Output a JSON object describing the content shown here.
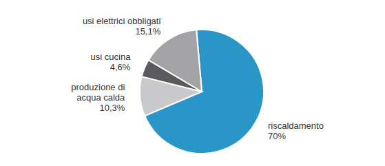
{
  "chart_data": {
    "type": "pie",
    "categories": [
      "riscaldamento",
      "produzione di acqua calda",
      "usi cucina",
      "usi elettrici obbligati"
    ],
    "values": [
      70,
      10.3,
      4.6,
      15.1
    ],
    "value_labels": [
      "70%",
      "10,3%",
      "4,6%",
      "15,1%"
    ],
    "colors": [
      "#2a96c8",
      "#c9c9cb",
      "#5a5a5c",
      "#a3a3a5"
    ],
    "data_labels": true
  }
}
